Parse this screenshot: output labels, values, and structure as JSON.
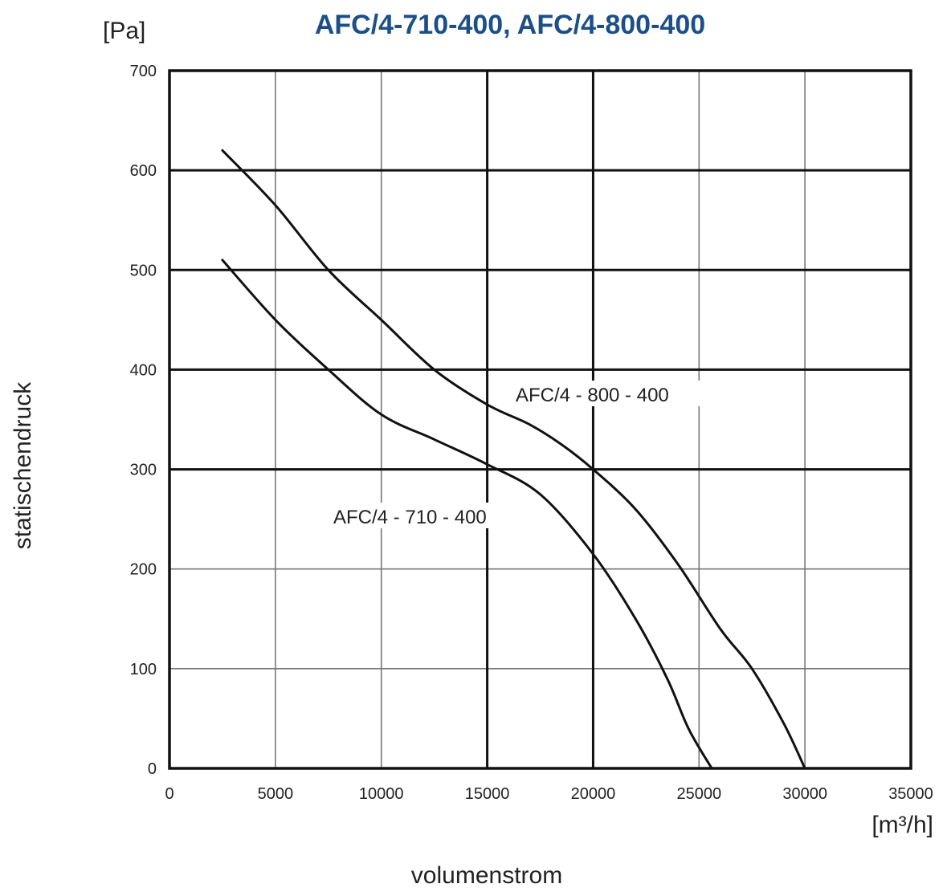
{
  "chart_data": {
    "type": "line",
    "title": "AFC/4-710-400, AFC/4-800-400",
    "ylabel": "statischendruck",
    "yunit": "[Pa]",
    "xlabel": "volumenstrom",
    "xunit": "[m³/h]",
    "xlim": [
      0,
      35000
    ],
    "ylim": [
      0,
      700
    ],
    "xticks": [
      0,
      5000,
      10000,
      15000,
      20000,
      25000,
      30000,
      35000
    ],
    "xtick_labels": [
      "0",
      "5000",
      "10000",
      "15000",
      "20000",
      "25000",
      "30000",
      "35000"
    ],
    "yticks": [
      0,
      100,
      200,
      300,
      400,
      500,
      600,
      700
    ],
    "ytick_labels": [
      "0",
      "100",
      "200",
      "300",
      "400",
      "500",
      "600",
      "700"
    ],
    "major_x": [
      0,
      15000,
      20000,
      35000
    ],
    "major_y": [
      0,
      300,
      400,
      500,
      600,
      700
    ],
    "grid": true,
    "series": [
      {
        "name": "AFC/4 - 800 - 400",
        "x": [
          2500,
          5000,
          7500,
          10000,
          12500,
          15000,
          17000,
          18500,
          20000,
          22000,
          24000,
          26000,
          27500,
          29000,
          30000
        ],
        "y": [
          620,
          565,
          500,
          450,
          400,
          365,
          345,
          325,
          300,
          260,
          205,
          140,
          100,
          45,
          0
        ]
      },
      {
        "name": "AFC/4 - 710 - 400",
        "x": [
          2500,
          5000,
          7500,
          10000,
          12500,
          15000,
          17500,
          20000,
          22000,
          23500,
          24500,
          25600
        ],
        "y": [
          510,
          450,
          400,
          355,
          330,
          305,
          275,
          215,
          150,
          90,
          40,
          0
        ]
      }
    ]
  }
}
